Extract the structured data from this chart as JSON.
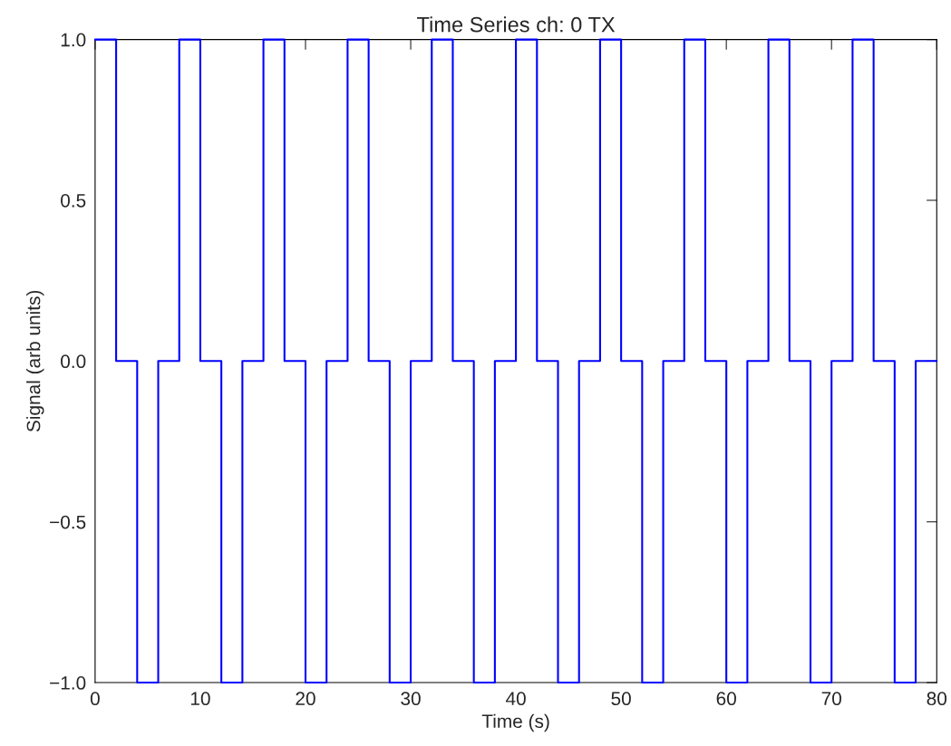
{
  "chart_data": {
    "type": "step",
    "title": "Time Series ch: 0 TX",
    "xlabel": "Time (s)",
    "ylabel": "Signal (arb units)",
    "x": [
      0,
      2,
      4,
      6,
      8,
      10,
      12,
      14,
      16,
      18,
      20,
      22,
      24,
      26,
      28,
      30,
      32,
      34,
      36,
      38,
      40,
      42,
      44,
      46,
      48,
      50,
      52,
      54,
      56,
      58,
      60,
      62,
      64,
      66,
      68,
      70,
      72,
      74,
      76,
      78,
      80
    ],
    "series": [
      {
        "color": "#0000ff",
        "values": [
          1,
          0,
          -1,
          0,
          1,
          0,
          -1,
          0,
          1,
          0,
          -1,
          0,
          1,
          0,
          -1,
          0,
          1,
          0,
          -1,
          0,
          1,
          0,
          -1,
          0,
          1,
          0,
          -1,
          0,
          1,
          0,
          -1,
          0,
          1,
          0,
          -1,
          0,
          1,
          0,
          -1,
          0,
          0
        ]
      }
    ],
    "xlim": [
      0,
      80
    ],
    "ylim": [
      -1.0,
      1.0
    ],
    "xticks": [
      0,
      10,
      20,
      30,
      40,
      50,
      60,
      70,
      80
    ],
    "yticks": [
      {
        "value": -1.0,
        "label": "−1.0"
      },
      {
        "value": -0.5,
        "label": "−0.5"
      },
      {
        "value": 0.0,
        "label": "0.0"
      },
      {
        "value": 0.5,
        "label": "0.5"
      },
      {
        "value": 1.0,
        "label": "1.0"
      }
    ],
    "grid": false,
    "legend": false,
    "line_style": "solid",
    "marker": "none"
  }
}
